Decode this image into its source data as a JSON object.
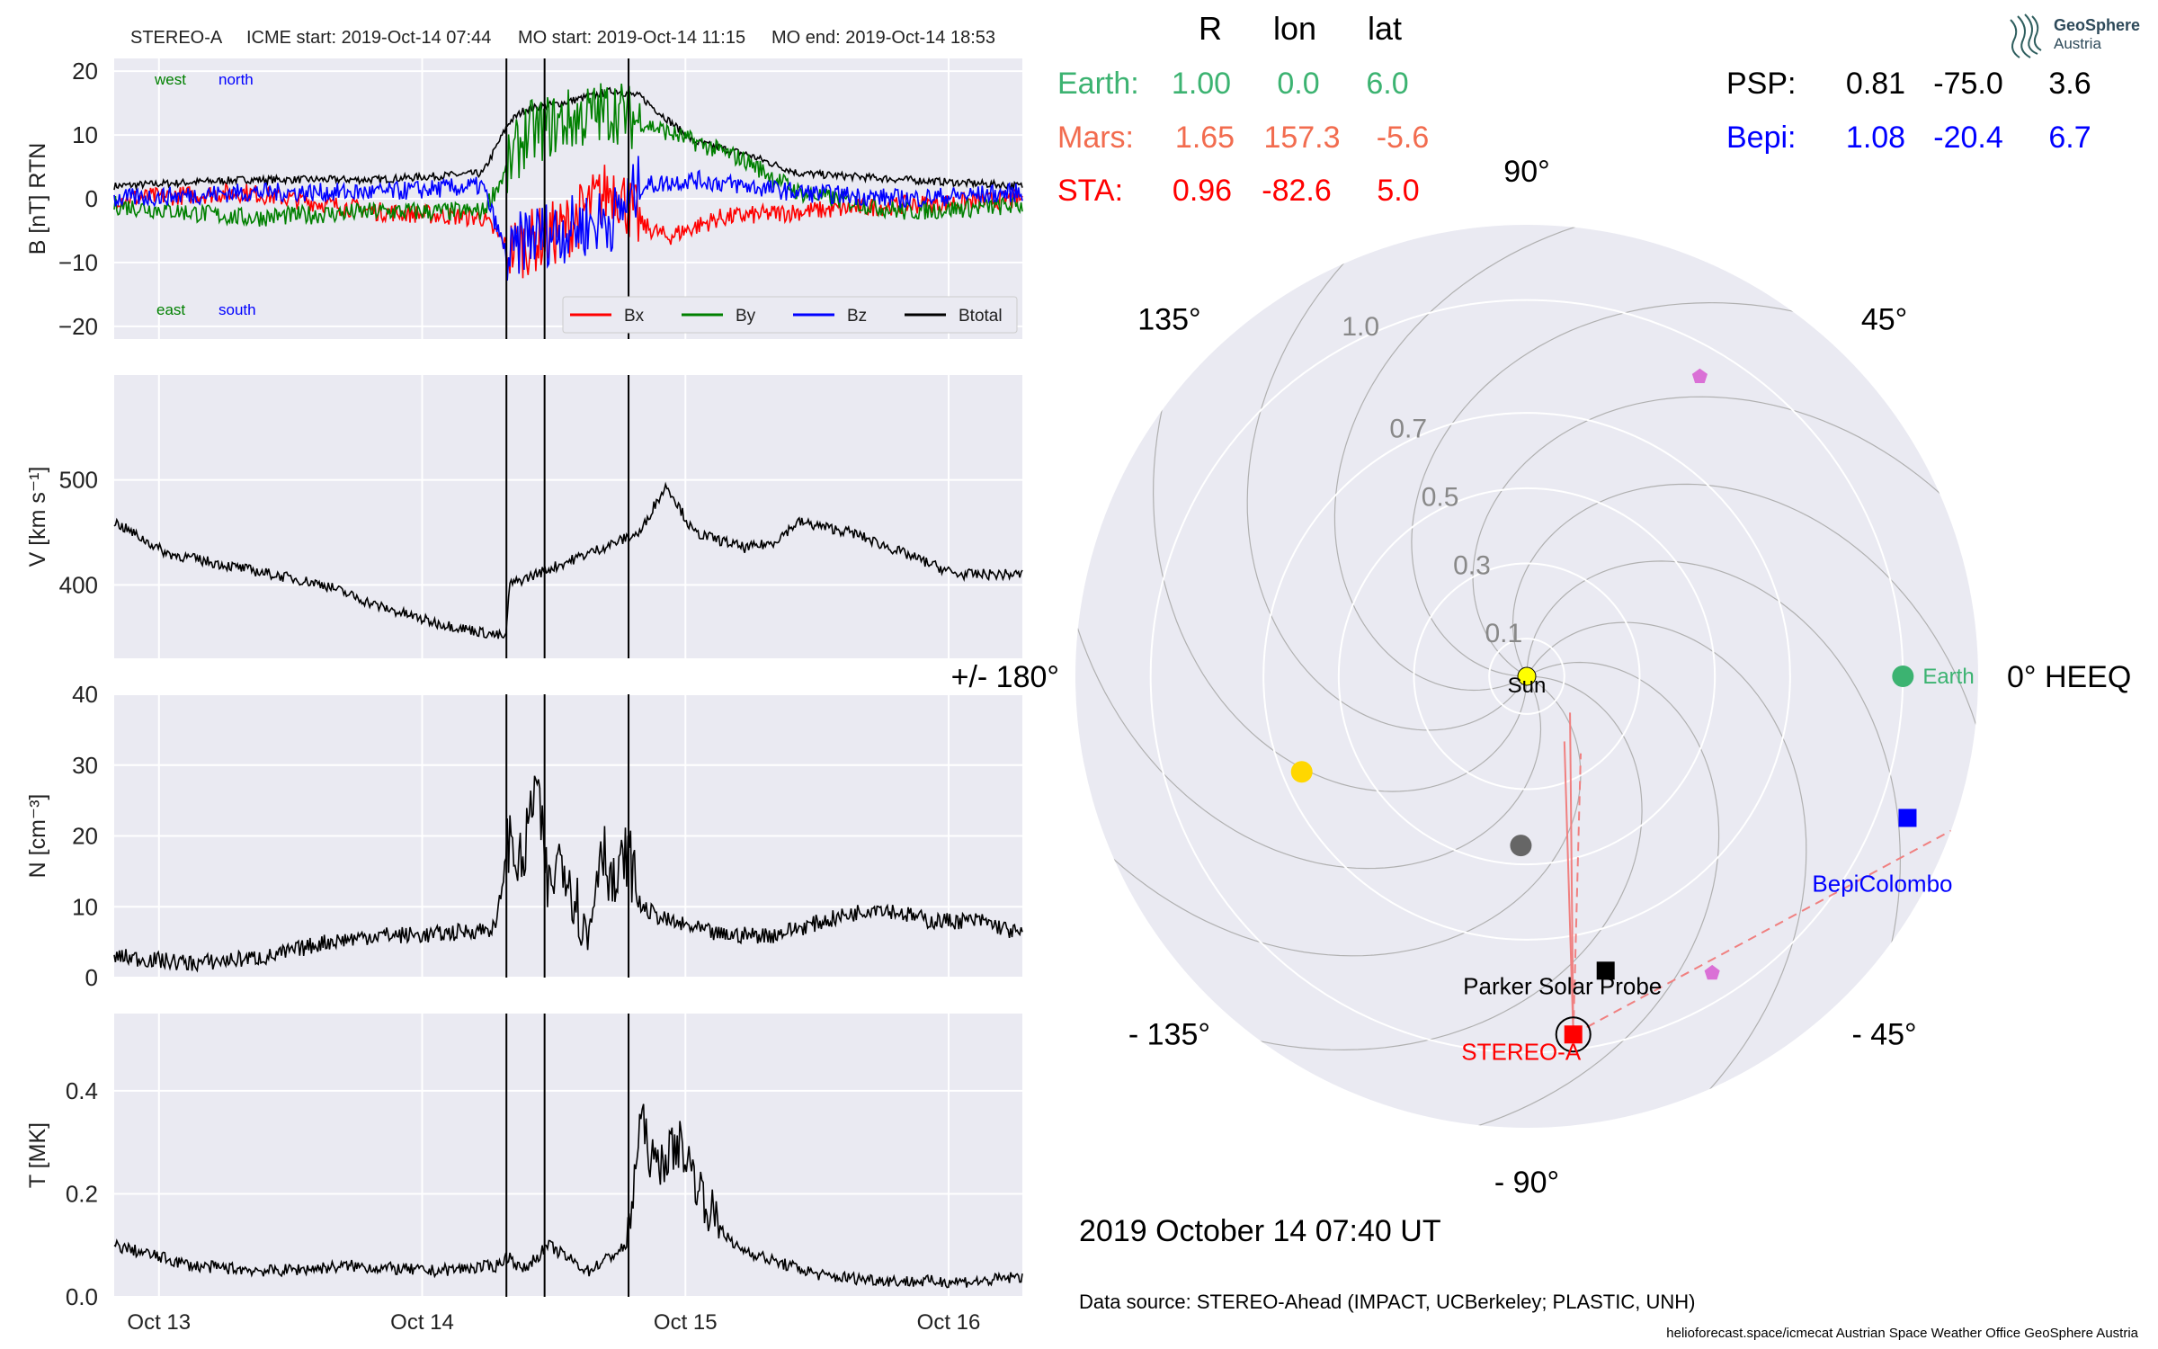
{
  "header": {
    "spacecraft": "STEREO-A",
    "icme_start": "ICME start: 2019-Oct-14 07:44",
    "mo_start": "MO start: 2019-Oct-14 11:15",
    "mo_end": "MO end: 2019-Oct-14 18:53"
  },
  "footer": {
    "date_label": "2019 October 14  07:40 UT",
    "data_source": "Data source: STEREO-Ahead (IMPACT, UCBerkeley; PLASTIC, UNH)",
    "credits": "helioforecast.space/icmecat   Austrian Space Weather Office   GeoSphere Austria"
  },
  "logo": {
    "line1": "GeoSphere",
    "line2": "Austria"
  },
  "position_table": {
    "headers": [
      "R",
      "lon",
      "lat"
    ],
    "rows_left": [
      {
        "name": "Earth:",
        "r": "1.00",
        "lon": "0.0",
        "lat": "6.0",
        "color": "#3cb371"
      },
      {
        "name": "Mars:",
        "r": "1.65",
        "lon": "157.3",
        "lat": "-5.6",
        "color": "#f26c4f"
      },
      {
        "name": "STA:",
        "r": "0.96",
        "lon": "-82.6",
        "lat": "5.0",
        "color": "#ff0000"
      }
    ],
    "rows_right": [
      {
        "name": "PSP:",
        "r": "0.81",
        "lon": "-75.0",
        "lat": "3.6",
        "color": "#000000"
      },
      {
        "name": "Bepi:",
        "r": "1.08",
        "lon": "-20.4",
        "lat": "6.7",
        "color": "#0000ff"
      }
    ]
  },
  "chart_data": [
    {
      "type": "line",
      "panel": "magnetic field",
      "ylabel": "B [nT] RTN",
      "ylim": [
        -22,
        22
      ],
      "yticks": [
        "20",
        "10",
        "0",
        "−10",
        "−20"
      ],
      "annotations": {
        "west": "west",
        "north": "north",
        "east": "east",
        "south": "south"
      },
      "legend": {
        "position": "lower-right",
        "entries": [
          "Bx",
          "By",
          "Bz",
          "Btotal"
        ]
      },
      "series": [
        {
          "name": "Btotal",
          "color": "#000000",
          "x": [
            0,
            0.5,
            1.0,
            1.4,
            1.5,
            1.56,
            1.7,
            1.8,
            1.9,
            2.0,
            2.2,
            2.4,
            2.6,
            3.0,
            3.45
          ],
          "y": [
            2,
            3,
            3,
            4,
            12,
            14,
            15,
            16,
            17,
            16,
            9,
            7,
            4,
            3,
            2
          ]
        },
        {
          "name": "Bx",
          "color": "#ff0000",
          "x": [
            0,
            0.5,
            1.0,
            1.4,
            1.5,
            1.7,
            1.9,
            2.0,
            2.1,
            2.3,
            2.6,
            3.0,
            3.45
          ],
          "y": [
            0,
            1,
            -2,
            -3,
            -8,
            -5,
            2,
            -4,
            -6,
            -3,
            -2,
            -1,
            0
          ]
        },
        {
          "name": "By",
          "color": "#008000",
          "x": [
            0,
            0.5,
            1.0,
            1.4,
            1.5,
            1.56,
            1.7,
            1.8,
            1.9,
            2.0,
            2.2,
            2.4,
            2.6,
            3.0,
            3.45
          ],
          "y": [
            -1,
            -3,
            -2,
            -2,
            5,
            10,
            12,
            13,
            14,
            12,
            9,
            6,
            1,
            -2,
            -1
          ]
        },
        {
          "name": "Bz",
          "color": "#0000ff",
          "x": [
            0,
            0.5,
            1.0,
            1.4,
            1.5,
            1.56,
            1.7,
            1.8,
            1.9,
            2.0,
            2.2,
            2.4,
            2.6,
            3.0,
            3.45
          ],
          "y": [
            0,
            1,
            1,
            2,
            -10,
            -6,
            -5,
            -4,
            -3,
            2,
            3,
            2,
            1,
            0,
            1
          ]
        }
      ]
    },
    {
      "type": "line",
      "panel": "speed",
      "ylabel": "V [km s⁻¹]",
      "ylim": [
        330,
        600
      ],
      "yticks": [
        "500",
        "400"
      ],
      "series": [
        {
          "name": "V",
          "color": "#000000",
          "x": [
            0,
            0.2,
            0.5,
            0.8,
            1.0,
            1.2,
            1.49,
            1.5,
            1.65,
            1.8,
            2.0,
            2.05,
            2.1,
            2.2,
            2.4,
            2.5,
            2.6,
            2.8,
            3.0,
            3.2,
            3.45
          ],
          "y": [
            460,
            430,
            415,
            400,
            380,
            365,
            350,
            400,
            415,
            430,
            450,
            475,
            495,
            450,
            435,
            440,
            460,
            450,
            430,
            410,
            410
          ]
        }
      ]
    },
    {
      "type": "line",
      "panel": "density",
      "ylabel": "N [cm⁻³]",
      "ylim": [
        0,
        40
      ],
      "yticks": [
        "40",
        "30",
        "20",
        "10",
        "0"
      ],
      "series": [
        {
          "name": "N",
          "color": "#000000",
          "x": [
            0,
            0.3,
            0.6,
            0.8,
            1.0,
            1.2,
            1.45,
            1.5,
            1.55,
            1.6,
            1.65,
            1.7,
            1.8,
            1.85,
            1.9,
            1.95,
            2.0,
            2.1,
            2.3,
            2.5,
            2.7,
            2.9,
            3.1,
            3.3,
            3.45
          ],
          "y": [
            3,
            2,
            3,
            5,
            6,
            6,
            7,
            20,
            15,
            28,
            12,
            18,
            5,
            20,
            12,
            18,
            10,
            8,
            6,
            6,
            8,
            10,
            8,
            8,
            6
          ]
        }
      ]
    },
    {
      "type": "line",
      "panel": "temperature",
      "ylabel": "T [MK]",
      "ylim": [
        0,
        0.55
      ],
      "yticks": [
        "0.4",
        "0.2",
        "0.0"
      ],
      "xticks": [
        "Oct 13",
        "Oct 14",
        "Oct 15",
        "Oct 16"
      ],
      "series": [
        {
          "name": "T",
          "color": "#000000",
          "x": [
            0,
            0.3,
            0.6,
            0.9,
            1.2,
            1.45,
            1.5,
            1.55,
            1.65,
            1.8,
            1.95,
            2.0,
            2.05,
            2.15,
            2.25,
            2.35,
            2.5,
            2.7,
            3.0,
            3.3,
            3.45
          ],
          "y": [
            0.1,
            0.06,
            0.05,
            0.06,
            0.05,
            0.06,
            0.08,
            0.05,
            0.1,
            0.05,
            0.1,
            0.35,
            0.25,
            0.3,
            0.18,
            0.1,
            0.07,
            0.04,
            0.03,
            0.03,
            0.04
          ]
        }
      ]
    },
    {
      "type": "scatter",
      "panel": "polar HEEQ position plot",
      "angle_labels": [
        "90°",
        "45°",
        "0° HEEQ",
        "- 45°",
        "- 90°",
        "- 135°",
        "+/- 180°",
        "135°"
      ],
      "radial_labels": [
        "0.1",
        "0.3",
        "0.5",
        "0.7",
        "1.0"
      ],
      "rmax": 1.2,
      "bodies": [
        {
          "name": "Sun",
          "r": 0.0,
          "lon": 0,
          "color": "#ffff00",
          "marker": "circle"
        },
        {
          "name": "Earth",
          "r": 1.0,
          "lon": 0.0,
          "color": "#3cb371",
          "marker": "circle"
        },
        {
          "name": "STEREO-A",
          "r": 0.96,
          "lon": -82.6,
          "color": "#ff0000",
          "marker": "square"
        },
        {
          "name": "Parker Solar Probe",
          "r": 0.81,
          "lon": -75.0,
          "color": "#000000",
          "marker": "square"
        },
        {
          "name": "BepiColombo",
          "r": 1.08,
          "lon": -20.4,
          "color": "#0000ff",
          "marker": "square"
        },
        {
          "name": "",
          "r": 0.65,
          "lon": -157,
          "color": "#ffd700",
          "marker": "circle"
        },
        {
          "name": "",
          "r": 0.45,
          "lon": -92,
          "color": "#666666",
          "marker": "circle"
        },
        {
          "name": "",
          "r": 0.92,
          "lon": 60,
          "color": "#da70d6",
          "marker": "pentagon"
        },
        {
          "name": "",
          "r": 0.93,
          "lon": -58,
          "color": "#da70d6",
          "marker": "pentagon"
        }
      ]
    }
  ],
  "event_lines_days": [
    1.49,
    1.635,
    1.954
  ]
}
